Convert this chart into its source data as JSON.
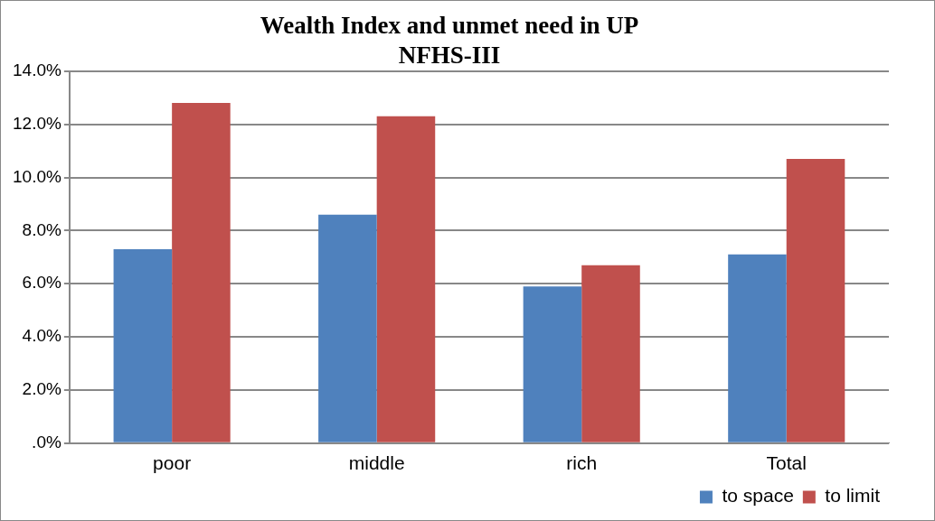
{
  "chart_data": {
    "type": "bar",
    "title": [
      "Wealth Index and unmet need in UP",
      "NFHS-III"
    ],
    "categories": [
      "poor",
      "middle",
      "rich",
      "Total"
    ],
    "series": [
      {
        "name": "to space",
        "color": "#4f81bd",
        "values": [
          7.3,
          8.6,
          5.9,
          7.1
        ]
      },
      {
        "name": "to limit",
        "color": "#c0504d",
        "values": [
          12.8,
          12.3,
          6.7,
          10.7
        ]
      }
    ],
    "ylim": [
      0,
      14
    ],
    "yticks": [
      {
        "value": 0,
        "label": ".0%"
      },
      {
        "value": 2,
        "label": "2.0%"
      },
      {
        "value": 4,
        "label": "4.0%"
      },
      {
        "value": 6,
        "label": "6.0%"
      },
      {
        "value": 8,
        "label": "8.0%"
      },
      {
        "value": 10,
        "label": "10.0%"
      },
      {
        "value": 12,
        "label": "12.0%"
      },
      {
        "value": 14,
        "label": "14.0%"
      }
    ],
    "grid": "y",
    "legend": "bottom right"
  }
}
